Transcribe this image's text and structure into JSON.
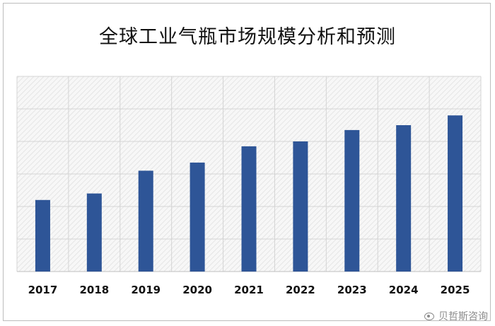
{
  "chart_data": {
    "type": "bar",
    "title": "全球工业气瓶市场规模分析和预测",
    "categories": [
      "2017",
      "2018",
      "2019",
      "2020",
      "2021",
      "2022",
      "2023",
      "2024",
      "2025"
    ],
    "values": [
      22,
      24,
      31,
      33.5,
      38.5,
      40,
      43.5,
      45,
      48
    ],
    "ylim": [
      0,
      60
    ],
    "gridlines": [
      10,
      20,
      30,
      40,
      50,
      60
    ],
    "grid": true,
    "legend": "none",
    "bar_color": "#2e5597"
  },
  "watermark": {
    "text": "贝哲斯咨询",
    "icon": "weibo-icon"
  }
}
